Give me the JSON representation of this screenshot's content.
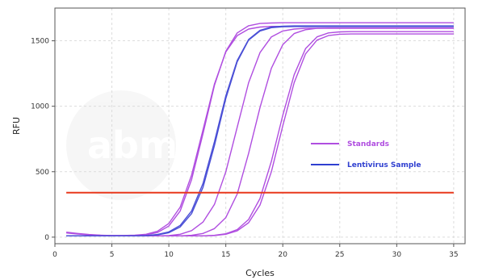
{
  "chart_data": {
    "type": "line",
    "xlabel": "Cycles",
    "ylabel": "RFU",
    "xlim": [
      0,
      36
    ],
    "ylim": [
      -50,
      1750
    ],
    "x_ticks": [
      0,
      5,
      10,
      15,
      20,
      25,
      30,
      35
    ],
    "y_ticks": [
      0,
      500,
      1000,
      1500
    ],
    "grid": true,
    "legend_position": "right-middle",
    "x": [
      1,
      2,
      3,
      4,
      5,
      6,
      7,
      8,
      9,
      10,
      11,
      12,
      13,
      14,
      15,
      16,
      17,
      18,
      19,
      20,
      21,
      22,
      23,
      24,
      25,
      26,
      27,
      28,
      29,
      30,
      31,
      32,
      33,
      34,
      35
    ],
    "threshold": {
      "value": 340,
      "color": "#e8381c"
    },
    "series": [
      {
        "name": "Standards",
        "color": "#b04ee0",
        "curves": [
          {
            "id": "std-1",
            "values": [
              38,
              28,
              20,
              15,
              13,
              13,
              15,
              22,
              45,
              105,
              230,
              475,
              820,
              1170,
              1415,
              1540,
              1590,
              1605,
              1610,
              1610,
              1610,
              1610,
              1610,
              1610,
              1610,
              1610,
              1610,
              1610,
              1610,
              1610,
              1610,
              1610,
              1610,
              1610,
              1610
            ]
          },
          {
            "id": "std-2",
            "values": [
              32,
              24,
              18,
              14,
              12,
              12,
              13,
              18,
              35,
              85,
              200,
              440,
              790,
              1160,
              1420,
              1560,
              1615,
              1632,
              1636,
              1638,
              1638,
              1638,
              1638,
              1638,
              1638,
              1638,
              1638,
              1638,
              1638,
              1638,
              1638,
              1638,
              1638,
              1638,
              1638
            ]
          },
          {
            "id": "std-3",
            "values": [
              10,
              10,
              10,
              10,
              10,
              10,
              10,
              10,
              10,
              12,
              22,
              50,
              115,
              250,
              500,
              840,
              1180,
              1410,
              1530,
              1575,
              1590,
              1595,
              1596,
              1596,
              1596,
              1596,
              1596,
              1596,
              1596,
              1596,
              1596,
              1596,
              1596,
              1596,
              1596
            ]
          },
          {
            "id": "std-4",
            "values": [
              10,
              10,
              10,
              10,
              10,
              10,
              10,
              10,
              10,
              10,
              10,
              14,
              28,
              65,
              150,
              330,
              640,
              990,
              1290,
              1470,
              1555,
              1585,
              1595,
              1598,
              1598,
              1598,
              1598,
              1598,
              1598,
              1598,
              1598,
              1598,
              1598,
              1598,
              1598
            ]
          },
          {
            "id": "std-5",
            "values": [
              10,
              10,
              10,
              10,
              10,
              10,
              10,
              10,
              10,
              10,
              10,
              10,
              10,
              14,
              26,
              58,
              135,
              295,
              580,
              930,
              1240,
              1440,
              1530,
              1560,
              1568,
              1570,
              1570,
              1570,
              1570,
              1570,
              1570,
              1570,
              1570,
              1570,
              1570
            ]
          },
          {
            "id": "std-6",
            "values": [
              10,
              10,
              10,
              10,
              10,
              10,
              10,
              10,
              10,
              10,
              10,
              10,
              10,
              12,
              22,
              48,
              110,
              245,
              500,
              850,
              1180,
              1400,
              1505,
              1540,
              1550,
              1552,
              1552,
              1552,
              1552,
              1552,
              1552,
              1552,
              1552,
              1552,
              1552
            ]
          }
        ]
      },
      {
        "name": "Lentivirus Sample",
        "color": "#4a4fd6",
        "curves": [
          {
            "id": "lenti-1",
            "values": [
              10,
              10,
              10,
              10,
              10,
              10,
              10,
              12,
              20,
              40,
              90,
              200,
              410,
              730,
              1080,
              1350,
              1510,
              1580,
              1605,
              1612,
              1614,
              1614,
              1614,
              1614,
              1614,
              1614,
              1614,
              1614,
              1614,
              1614,
              1614,
              1614,
              1614,
              1614,
              1614
            ]
          },
          {
            "id": "lenti-2",
            "values": [
              10,
              10,
              10,
              10,
              10,
              10,
              10,
              11,
              17,
              34,
              78,
              180,
              380,
              700,
              1060,
              1340,
              1505,
              1575,
              1600,
              1607,
              1609,
              1609,
              1609,
              1609,
              1609,
              1609,
              1609,
              1609,
              1609,
              1609,
              1609,
              1609,
              1609,
              1609,
              1609
            ]
          }
        ]
      }
    ],
    "legend": [
      {
        "label": "Standards",
        "color": "#b04ee0"
      },
      {
        "label": "Lentivirus Sample",
        "color": "#2f3fd0"
      }
    ]
  },
  "watermark": {
    "text": "abm"
  }
}
